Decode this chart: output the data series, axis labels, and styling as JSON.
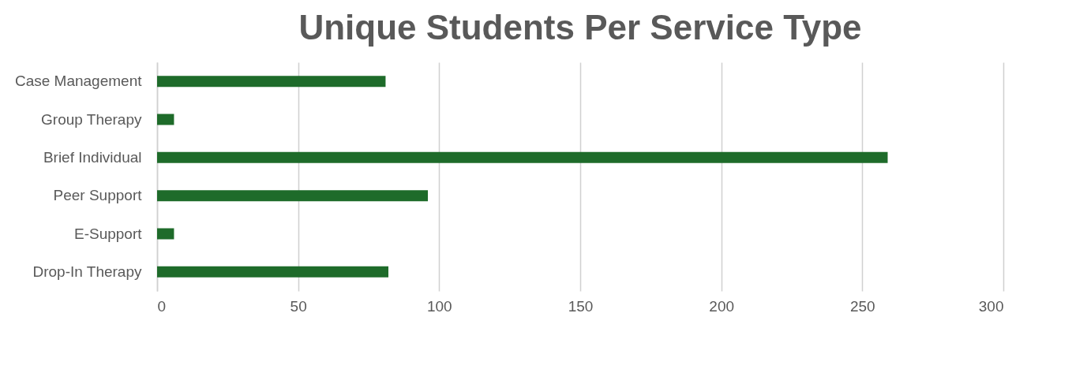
{
  "chart_data": {
    "type": "bar",
    "orientation": "horizontal",
    "title": "Unique Students Per Service Type",
    "categories": [
      "Case Management",
      "Group Therapy",
      "Brief Individual",
      "Peer Support",
      "E-Support",
      "Drop-In Therapy"
    ],
    "values": [
      81,
      6,
      259,
      96,
      6,
      82
    ],
    "color": "#1e6b2a",
    "xlim": [
      0,
      300
    ],
    "xticks": [
      0,
      50,
      100,
      150,
      200,
      250,
      300
    ],
    "grid": "x"
  }
}
